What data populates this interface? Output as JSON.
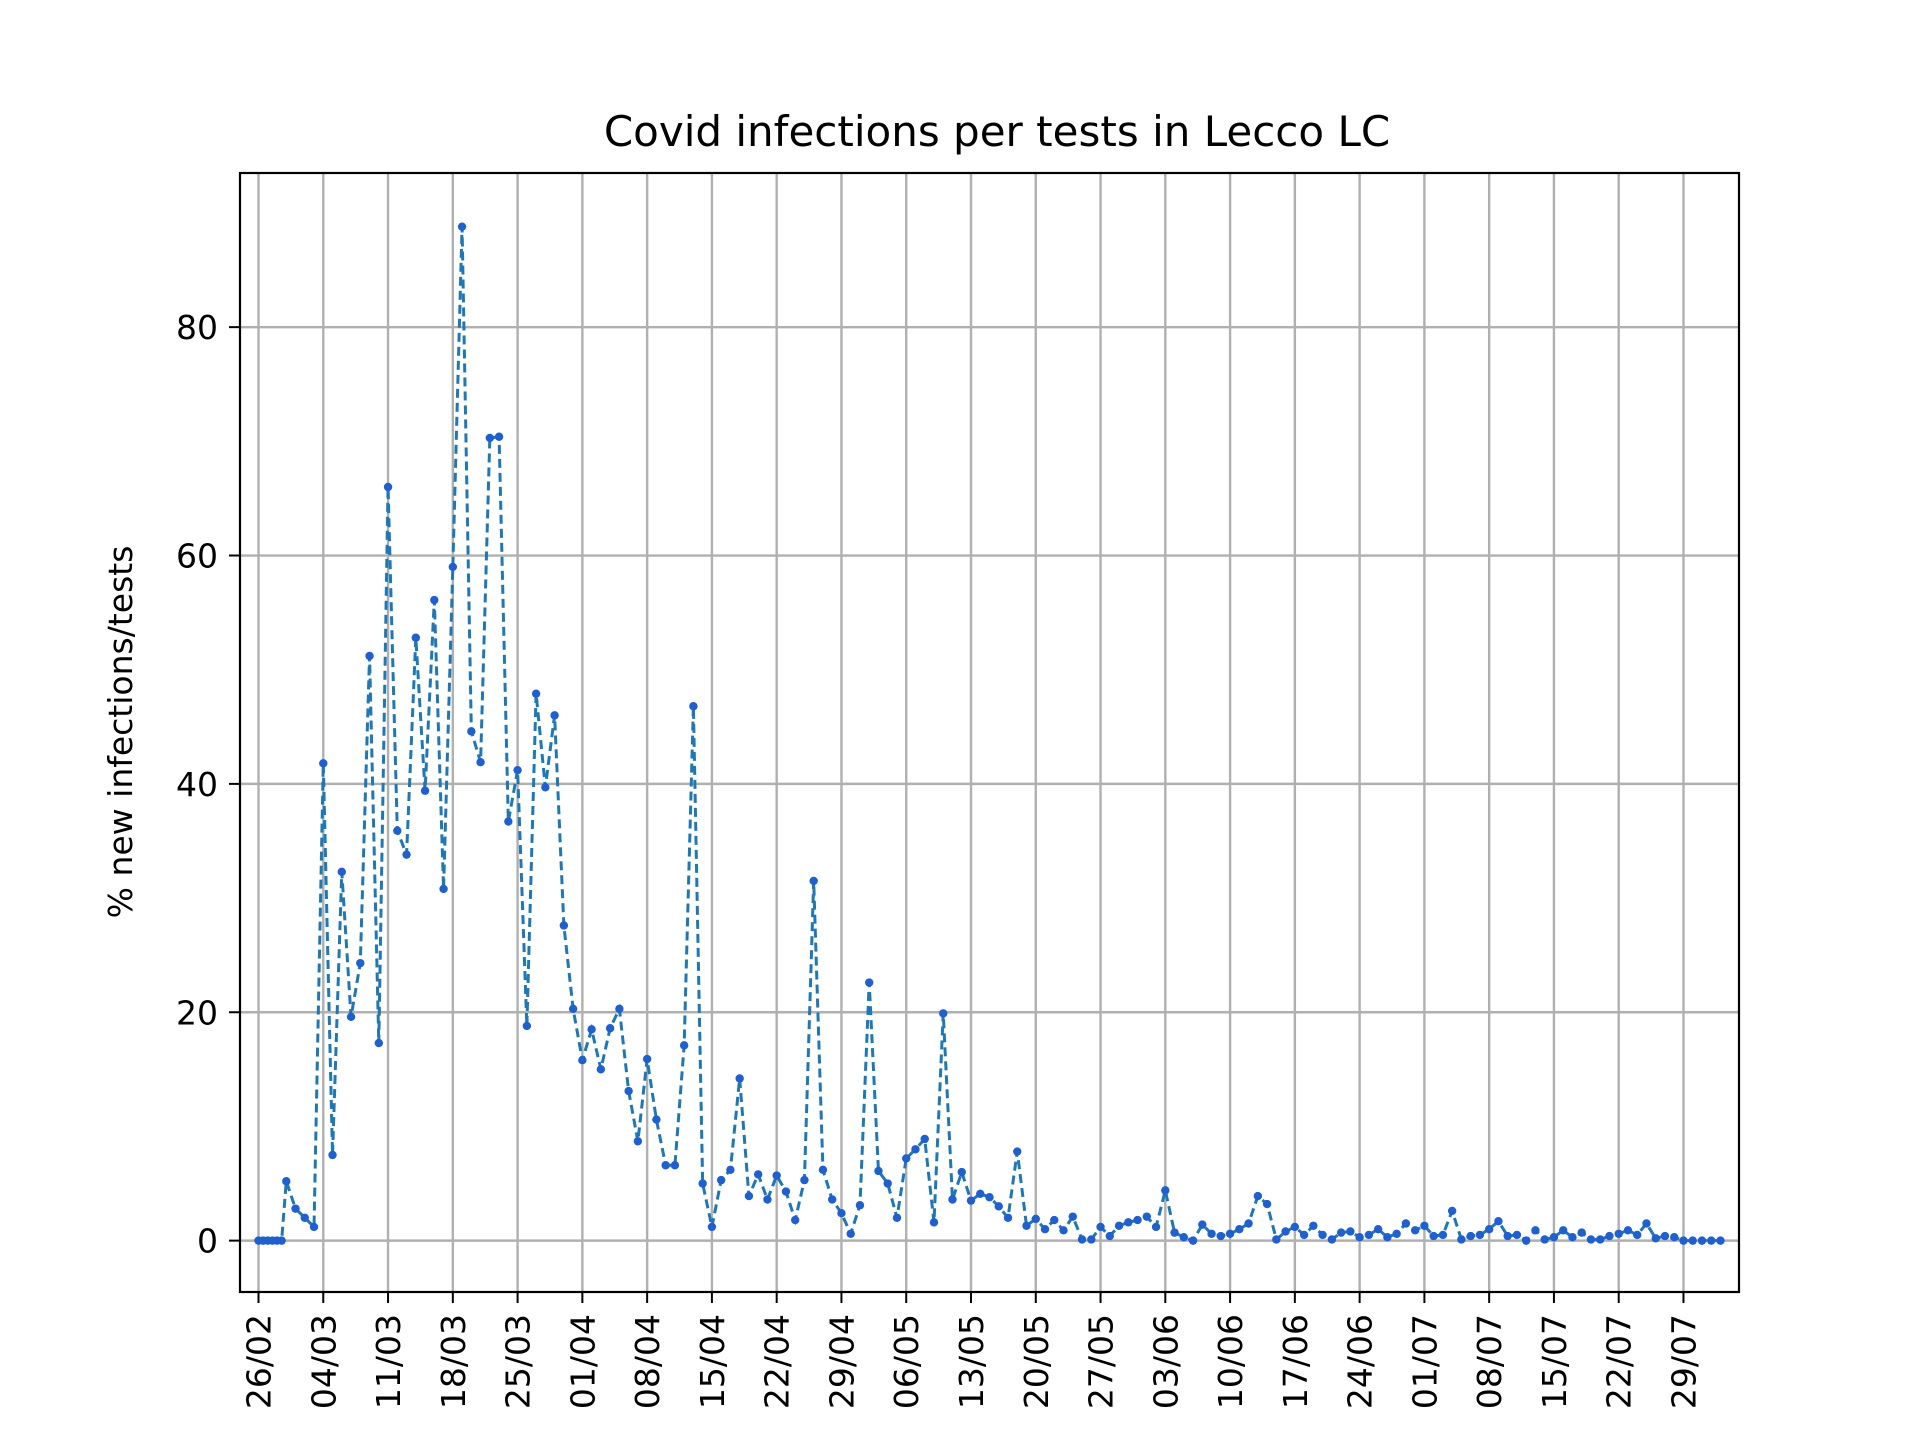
{
  "chart_data": {
    "type": "line",
    "title": "Covid infections per tests in Lecco LC",
    "xlabel": "",
    "ylabel": "% new infections/tests",
    "ylim": [
      -4.5,
      93.5
    ],
    "yticks": [
      0,
      20,
      40,
      60,
      80
    ],
    "xlim": [
      -2,
      160
    ],
    "xticks": [
      {
        "day": 0,
        "label": "26/02"
      },
      {
        "day": 7,
        "label": "04/03"
      },
      {
        "day": 14,
        "label": "11/03"
      },
      {
        "day": 21,
        "label": "18/03"
      },
      {
        "day": 28,
        "label": "25/03"
      },
      {
        "day": 35,
        "label": "01/04"
      },
      {
        "day": 42,
        "label": "08/04"
      },
      {
        "day": 49,
        "label": "15/04"
      },
      {
        "day": 56,
        "label": "22/04"
      },
      {
        "day": 63,
        "label": "29/04"
      },
      {
        "day": 70,
        "label": "06/05"
      },
      {
        "day": 77,
        "label": "13/05"
      },
      {
        "day": 84,
        "label": "20/05"
      },
      {
        "day": 91,
        "label": "27/05"
      },
      {
        "day": 98,
        "label": "03/06"
      },
      {
        "day": 105,
        "label": "10/06"
      },
      {
        "day": 112,
        "label": "17/06"
      },
      {
        "day": 119,
        "label": "24/06"
      },
      {
        "day": 126,
        "label": "01/07"
      },
      {
        "day": 133,
        "label": "08/07"
      },
      {
        "day": 140,
        "label": "15/07"
      },
      {
        "day": 147,
        "label": "22/07"
      },
      {
        "day": 154,
        "label": "29/07"
      }
    ],
    "grid": true,
    "series": [
      {
        "name": "",
        "color": "#1f77b4",
        "marker_color": "#1f5fd0",
        "points": [
          [
            0,
            0
          ],
          [
            0.5,
            0
          ],
          [
            1,
            0
          ],
          [
            1.5,
            0
          ],
          [
            2,
            0
          ],
          [
            2.5,
            0
          ],
          [
            3,
            5.2
          ],
          [
            4,
            2.8
          ],
          [
            5,
            2
          ],
          [
            6,
            1.2
          ],
          [
            7,
            41.8
          ],
          [
            8,
            7.5
          ],
          [
            9,
            32.3
          ],
          [
            10,
            19.6
          ],
          [
            11,
            24.3
          ],
          [
            12,
            51.2
          ],
          [
            13,
            17.3
          ],
          [
            14,
            66
          ],
          [
            15,
            35.9
          ],
          [
            16,
            33.8
          ],
          [
            17,
            52.8
          ],
          [
            18,
            39.4
          ],
          [
            19,
            56.1
          ],
          [
            20,
            30.8
          ],
          [
            21,
            59
          ],
          [
            22,
            88.8
          ],
          [
            23,
            44.6
          ],
          [
            24,
            41.9
          ],
          [
            25,
            70.3
          ],
          [
            26,
            70.4
          ],
          [
            27,
            36.7
          ],
          [
            28,
            41.2
          ],
          [
            29,
            18.8
          ],
          [
            30,
            47.9
          ],
          [
            31,
            39.7
          ],
          [
            32,
            46
          ],
          [
            33,
            27.6
          ],
          [
            34,
            20.3
          ],
          [
            35,
            15.8
          ],
          [
            36,
            18.5
          ],
          [
            37,
            15
          ],
          [
            38,
            18.6
          ],
          [
            39,
            20.3
          ],
          [
            40,
            13.1
          ],
          [
            41,
            8.7
          ],
          [
            42,
            15.9
          ],
          [
            43,
            10.6
          ],
          [
            44,
            6.6
          ],
          [
            45,
            6.6
          ],
          [
            46,
            17.1
          ],
          [
            47,
            46.8
          ],
          [
            48,
            5
          ],
          [
            49,
            1.2
          ],
          [
            50,
            5.3
          ],
          [
            51,
            6.2
          ],
          [
            52,
            14.2
          ],
          [
            53,
            3.9
          ],
          [
            54,
            5.8
          ],
          [
            55,
            3.6
          ],
          [
            56,
            5.7
          ],
          [
            57,
            4.3
          ],
          [
            58,
            1.8
          ],
          [
            59,
            5.3
          ],
          [
            60,
            31.5
          ],
          [
            61,
            6.2
          ],
          [
            62,
            3.6
          ],
          [
            63,
            2.4
          ],
          [
            64,
            0.6
          ],
          [
            65,
            3.1
          ],
          [
            66,
            22.6
          ],
          [
            67,
            6.1
          ],
          [
            68,
            5
          ],
          [
            69,
            2
          ],
          [
            70,
            7.2
          ],
          [
            71,
            8
          ],
          [
            72,
            8.9
          ],
          [
            73,
            1.6
          ],
          [
            74,
            19.9
          ],
          [
            75,
            3.6
          ],
          [
            76,
            6
          ],
          [
            77,
            3.5
          ],
          [
            78,
            4.1
          ],
          [
            79,
            3.8
          ],
          [
            80,
            3
          ],
          [
            81,
            2
          ],
          [
            82,
            7.8
          ],
          [
            83,
            1.3
          ],
          [
            84,
            1.9
          ],
          [
            85,
            1
          ],
          [
            86,
            1.8
          ],
          [
            87,
            0.9
          ],
          [
            88,
            2.1
          ],
          [
            89,
            0.1
          ],
          [
            90,
            0.1
          ],
          [
            91,
            1.2
          ],
          [
            92,
            0.4
          ],
          [
            93,
            1.3
          ],
          [
            94,
            1.6
          ],
          [
            95,
            1.8
          ],
          [
            96,
            2.1
          ],
          [
            97,
            1.2
          ],
          [
            98,
            4.4
          ],
          [
            99,
            0.7
          ],
          [
            100,
            0.3
          ],
          [
            101,
            0
          ],
          [
            102,
            1.4
          ],
          [
            103,
            0.6
          ],
          [
            104,
            0.4
          ],
          [
            105,
            0.6
          ],
          [
            106,
            1
          ],
          [
            107,
            1.5
          ],
          [
            108,
            3.9
          ],
          [
            109,
            3.2
          ],
          [
            110,
            0.1
          ],
          [
            111,
            0.8
          ],
          [
            112,
            1.2
          ],
          [
            113,
            0.5
          ],
          [
            114,
            1.3
          ],
          [
            115,
            0.5
          ],
          [
            116,
            0.1
          ],
          [
            117,
            0.7
          ],
          [
            118,
            0.8
          ],
          [
            119,
            0.3
          ],
          [
            120,
            0.5
          ],
          [
            121,
            1
          ],
          [
            122,
            0.3
          ],
          [
            123,
            0.6
          ],
          [
            124,
            1.5
          ],
          [
            125,
            0.9
          ],
          [
            126,
            1.3
          ],
          [
            127,
            0.4
          ],
          [
            128,
            0.5
          ],
          [
            129,
            2.6
          ],
          [
            130,
            0.1
          ],
          [
            131,
            0.4
          ],
          [
            132,
            0.5
          ],
          [
            133,
            1
          ],
          [
            134,
            1.7
          ],
          [
            135,
            0.4
          ],
          [
            136,
            0.5
          ],
          [
            137,
            0
          ],
          [
            138,
            0.9
          ],
          [
            139,
            0.1
          ],
          [
            140,
            0.3
          ],
          [
            141,
            0.9
          ],
          [
            142,
            0.3
          ],
          [
            143,
            0.7
          ],
          [
            144,
            0.1
          ],
          [
            145,
            0.1
          ],
          [
            146,
            0.4
          ],
          [
            147,
            0.6
          ],
          [
            148,
            0.9
          ],
          [
            149,
            0.5
          ],
          [
            150,
            1.5
          ],
          [
            151,
            0.2
          ],
          [
            152,
            0.4
          ],
          [
            153,
            0.3
          ],
          [
            154,
            0
          ],
          [
            155,
            0
          ],
          [
            156,
            0
          ],
          [
            157,
            0
          ],
          [
            158,
            0
          ]
        ]
      }
    ]
  }
}
